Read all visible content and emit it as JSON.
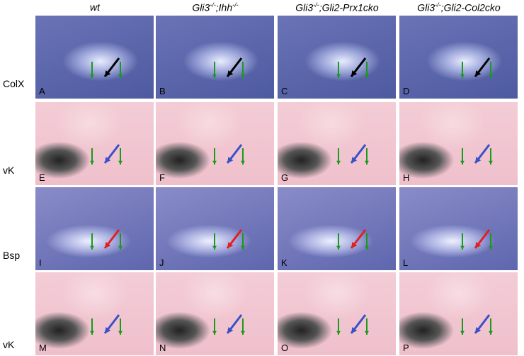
{
  "columns": [
    [
      "wt"
    ],
    [
      "Gli3",
      "-/-",
      ";Ihh",
      "-/-"
    ],
    [
      "Gli3",
      "-/-",
      ";Gli2-Prx1cko"
    ],
    [
      "Gli3",
      "-/-",
      ";Gli2-Col2cko"
    ]
  ],
  "rows": [
    "ColX",
    "vK",
    "Bsp",
    "vK"
  ],
  "panels": [
    [
      "A",
      "B",
      "C",
      "D"
    ],
    [
      "E",
      "F",
      "G",
      "H"
    ],
    [
      "I",
      "J",
      "K",
      "L"
    ],
    [
      "M",
      "N",
      "O",
      "P"
    ]
  ]
}
